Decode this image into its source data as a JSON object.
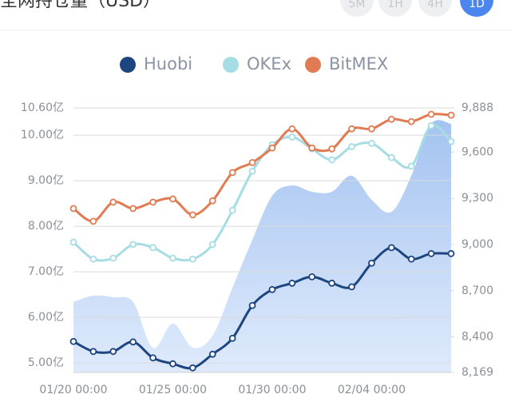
{
  "header": {
    "title": "全网持仓量（USD）",
    "buttons": [
      "5M",
      "1H",
      "4H",
      "1D"
    ]
  },
  "chart_data": {
    "type": "line",
    "categories": [
      "01/20 00:00",
      null,
      null,
      null,
      null,
      "01/25 00:00",
      null,
      null,
      null,
      null,
      "01/30 00:00",
      null,
      null,
      null,
      null,
      "02/04 00:00",
      null,
      null,
      null,
      null
    ],
    "series": [
      {
        "name": "Huobi",
        "color": "#1d4580",
        "values": [
          5.47,
          5.25,
          5.25,
          5.46,
          5.11,
          4.98,
          4.89,
          5.19,
          5.54,
          6.26,
          6.61,
          6.75,
          6.89,
          6.75,
          6.67,
          7.19,
          7.53,
          7.28,
          7.4,
          7.4
        ]
      },
      {
        "name": "OKEx",
        "color": "#a6dce3",
        "values": [
          7.65,
          7.28,
          7.3,
          7.6,
          7.53,
          7.3,
          7.28,
          7.6,
          8.35,
          9.21,
          9.79,
          9.96,
          9.7,
          9.46,
          9.75,
          9.82,
          9.51,
          9.32,
          10.21,
          9.86
        ]
      },
      {
        "name": "BitMEX",
        "color": "#e07b53",
        "values": [
          8.39,
          8.11,
          8.53,
          8.39,
          8.53,
          8.6,
          8.25,
          8.56,
          9.18,
          9.4,
          9.72,
          10.14,
          9.72,
          9.7,
          10.14,
          10.14,
          10.35,
          10.3,
          10.46,
          10.44
        ]
      }
    ],
    "area": {
      "axis": "y2",
      "color": "#a9c8f3",
      "values": [
        8626,
        8668,
        8657,
        8626,
        8330,
        8486,
        8330,
        8408,
        8720,
        9031,
        9317,
        9384,
        9343,
        9343,
        9447,
        9291,
        9213,
        9447,
        9784,
        9784
      ]
    },
    "ylim": [
      4.79,
      10.6
    ],
    "yticks": [
      {
        "value": 5,
        "label": "5.00亿"
      },
      {
        "value": 6,
        "label": "6.00亿"
      },
      {
        "value": 7,
        "label": "7.00亿"
      },
      {
        "value": 8,
        "label": "8.00亿"
      },
      {
        "value": 9,
        "label": "9.00亿"
      },
      {
        "value": 10,
        "label": "10.00亿"
      },
      {
        "value": 10.6,
        "label": "10.60亿"
      }
    ],
    "y2lim": [
      8169,
      9888
    ],
    "y2ticks": [
      {
        "value": 8169,
        "label": "8,169"
      },
      {
        "value": 8400,
        "label": "8,400"
      },
      {
        "value": 8700,
        "label": "8,700"
      },
      {
        "value": 9000,
        "label": "9,000"
      },
      {
        "value": 9300,
        "label": "9,300"
      },
      {
        "value": 9600,
        "label": "9,600"
      },
      {
        "value": 9888,
        "label": "9,888"
      }
    ],
    "grid": true
  }
}
